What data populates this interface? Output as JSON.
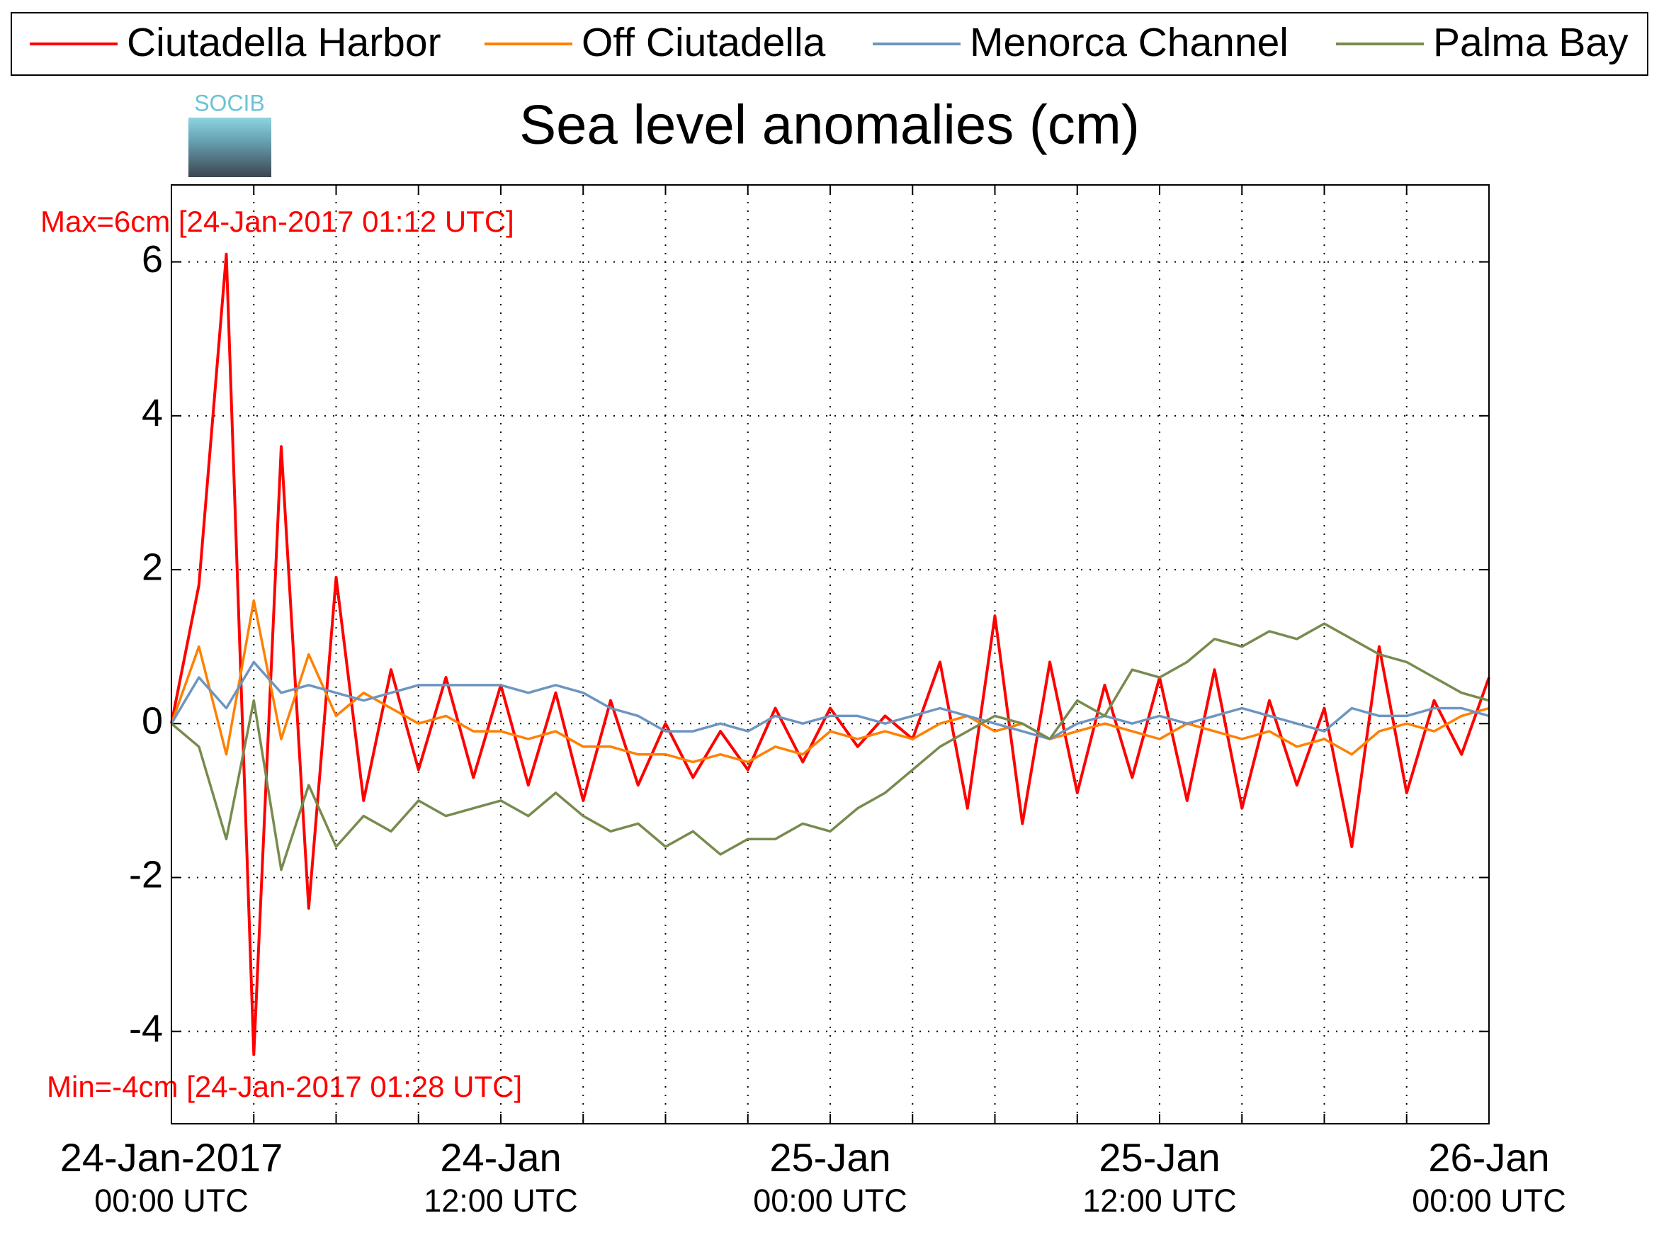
{
  "chart_data": {
    "type": "line",
    "title": "Sea level anomalies (cm)",
    "logo_text": "SOCIB",
    "annotations": [
      "Max=6cm [24-Jan-2017 01:12 UTC]",
      "Min=-4cm [24-Jan-2017 01:28 UTC]"
    ],
    "x": [
      "2017-01-24 00:00",
      "2017-01-24 01:00",
      "2017-01-24 02:00",
      "2017-01-24 03:00",
      "2017-01-24 04:00",
      "2017-01-24 05:00",
      "2017-01-24 06:00",
      "2017-01-24 07:00",
      "2017-01-24 08:00",
      "2017-01-24 09:00",
      "2017-01-24 10:00",
      "2017-01-24 11:00",
      "2017-01-24 12:00",
      "2017-01-24 13:00",
      "2017-01-24 14:00",
      "2017-01-24 15:00",
      "2017-01-24 16:00",
      "2017-01-24 17:00",
      "2017-01-24 18:00",
      "2017-01-24 19:00",
      "2017-01-24 20:00",
      "2017-01-24 21:00",
      "2017-01-24 22:00",
      "2017-01-24 23:00",
      "2017-01-25 00:00",
      "2017-01-25 01:00",
      "2017-01-25 02:00",
      "2017-01-25 03:00",
      "2017-01-25 04:00",
      "2017-01-25 05:00",
      "2017-01-25 06:00",
      "2017-01-25 07:00",
      "2017-01-25 08:00",
      "2017-01-25 09:00",
      "2017-01-25 10:00",
      "2017-01-25 11:00",
      "2017-01-25 12:00",
      "2017-01-25 13:00",
      "2017-01-25 14:00",
      "2017-01-25 15:00",
      "2017-01-25 16:00",
      "2017-01-25 17:00",
      "2017-01-25 18:00",
      "2017-01-25 19:00",
      "2017-01-25 20:00",
      "2017-01-25 21:00",
      "2017-01-25 22:00",
      "2017-01-25 23:00",
      "2017-01-26 00:00"
    ],
    "series": [
      {
        "name": "Ciutadella Harbor",
        "color": "#ff0000",
        "values": [
          0,
          1.8,
          6.1,
          -4.3,
          3.6,
          -2.4,
          1.9,
          -1.0,
          0.7,
          -0.6,
          0.6,
          -0.7,
          0.5,
          -0.8,
          0.4,
          -1.0,
          0.3,
          -0.8,
          0.0,
          -0.7,
          -0.1,
          -0.6,
          0.2,
          -0.5,
          0.2,
          -0.3,
          0.1,
          -0.2,
          0.8,
          -1.1,
          1.4,
          -1.3,
          0.8,
          -0.9,
          0.5,
          -0.7,
          0.6,
          -1.0,
          0.7,
          -1.1,
          0.3,
          -0.8,
          0.2,
          -1.6,
          1.0,
          -0.9,
          0.3,
          -0.4,
          0.6
        ]
      },
      {
        "name": "Off Ciutadella",
        "color": "#ff8000",
        "values": [
          0,
          1.0,
          -0.4,
          1.6,
          -0.2,
          0.9,
          0.1,
          0.4,
          0.2,
          0.0,
          0.1,
          -0.1,
          -0.1,
          -0.2,
          -0.1,
          -0.3,
          -0.3,
          -0.4,
          -0.4,
          -0.5,
          -0.4,
          -0.5,
          -0.3,
          -0.4,
          -0.1,
          -0.2,
          -0.1,
          -0.2,
          0.0,
          0.1,
          -0.1,
          0.0,
          -0.2,
          -0.1,
          0.0,
          -0.1,
          -0.2,
          0.0,
          -0.1,
          -0.2,
          -0.1,
          -0.3,
          -0.2,
          -0.4,
          -0.1,
          0.0,
          -0.1,
          0.1,
          0.2
        ]
      },
      {
        "name": "Menorca Channel",
        "color": "#6e95c0",
        "values": [
          0,
          0.6,
          0.2,
          0.8,
          0.4,
          0.5,
          0.4,
          0.3,
          0.4,
          0.5,
          0.5,
          0.5,
          0.5,
          0.4,
          0.5,
          0.4,
          0.2,
          0.1,
          -0.1,
          -0.1,
          0.0,
          -0.1,
          0.1,
          0.0,
          0.1,
          0.1,
          0.0,
          0.1,
          0.2,
          0.1,
          0.0,
          -0.1,
          -0.2,
          0.0,
          0.1,
          0.0,
          0.1,
          0.0,
          0.1,
          0.2,
          0.1,
          0.0,
          -0.1,
          0.2,
          0.1,
          0.1,
          0.2,
          0.2,
          0.1
        ]
      },
      {
        "name": "Palma Bay",
        "color": "#778b4e",
        "values": [
          0,
          -0.3,
          -1.5,
          0.3,
          -1.9,
          -0.8,
          -1.6,
          -1.2,
          -1.4,
          -1.0,
          -1.2,
          -1.1,
          -1.0,
          -1.2,
          -0.9,
          -1.2,
          -1.4,
          -1.3,
          -1.6,
          -1.4,
          -1.7,
          -1.5,
          -1.5,
          -1.3,
          -1.4,
          -1.1,
          -0.9,
          -0.6,
          -0.3,
          -0.1,
          0.1,
          0.0,
          -0.2,
          0.3,
          0.1,
          0.7,
          0.6,
          0.8,
          1.1,
          1.0,
          1.2,
          1.1,
          1.3,
          1.1,
          0.9,
          0.8,
          0.6,
          0.4,
          0.3
        ]
      }
    ],
    "xlim": [
      "2017-01-24 00:00",
      "2017-01-26 00:00"
    ],
    "xticks": [
      {
        "value": "2017-01-24 00:00",
        "label": [
          "24-Jan-2017",
          "00:00 UTC"
        ]
      },
      {
        "value": "2017-01-24 12:00",
        "label": [
          "24-Jan",
          "12:00 UTC"
        ]
      },
      {
        "value": "2017-01-25 00:00",
        "label": [
          "25-Jan",
          "00:00 UTC"
        ]
      },
      {
        "value": "2017-01-25 12:00",
        "label": [
          "25-Jan",
          "12:00 UTC"
        ]
      },
      {
        "value": "2017-01-26 00:00",
        "label": [
          "26-Jan",
          "00:00 UTC"
        ]
      }
    ],
    "xminor_ticks": [
      "2017-01-24 03:00",
      "2017-01-24 06:00",
      "2017-01-24 09:00",
      "2017-01-24 15:00",
      "2017-01-24 18:00",
      "2017-01-24 21:00",
      "2017-01-25 03:00",
      "2017-01-25 06:00",
      "2017-01-25 09:00",
      "2017-01-25 15:00",
      "2017-01-25 18:00",
      "2017-01-25 21:00"
    ],
    "ylim": [
      -5.2,
      7
    ],
    "yticks": [
      -4,
      -2,
      0,
      2,
      4,
      6
    ],
    "grid": true,
    "legend": "top"
  }
}
